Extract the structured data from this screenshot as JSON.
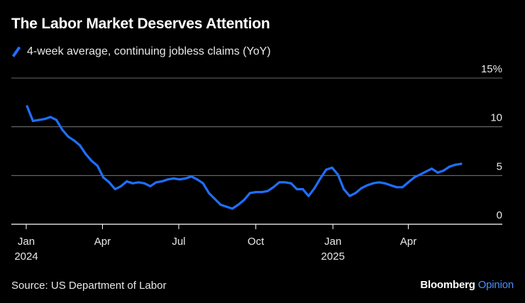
{
  "title": "The Labor Market Deserves Attention",
  "legend_label": "4-week average, continuing jobless claims (YoY)",
  "source": "Source: US Department of Labor",
  "brand": {
    "part1": "Bloomberg",
    "part2": "Opinion"
  },
  "colors": {
    "series": "#1f6fff",
    "background": "#000000",
    "grid": "#ffffff",
    "text": "#e8e8e8"
  },
  "chart_data": {
    "type": "line",
    "title": "The Labor Market Deserves Attention",
    "xlabel": "",
    "ylabel": "",
    "ylim": [
      0,
      15
    ],
    "xlim": [
      "2024-01-01",
      "2025-07-01"
    ],
    "y_ticks": [
      {
        "value": 15,
        "label": "15%"
      },
      {
        "value": 10,
        "label": "10"
      },
      {
        "value": 5,
        "label": "5"
      },
      {
        "value": 0,
        "label": "0"
      }
    ],
    "x_ticks": [
      {
        "date": "2024-01-01",
        "label": "Jan",
        "sublabel": "2024"
      },
      {
        "date": "2024-04-01",
        "label": "Apr",
        "sublabel": ""
      },
      {
        "date": "2024-07-01",
        "label": "Jul",
        "sublabel": ""
      },
      {
        "date": "2024-10-01",
        "label": "Oct",
        "sublabel": ""
      },
      {
        "date": "2025-01-01",
        "label": "Jan",
        "sublabel": "2025"
      },
      {
        "date": "2025-04-01",
        "label": "Apr",
        "sublabel": ""
      }
    ],
    "grid": true,
    "legend_position": "top-left",
    "series": [
      {
        "name": "4-week average, continuing jobless claims (YoY)",
        "x": [
          "2024-01-02",
          "2024-01-09",
          "2024-01-16",
          "2024-01-23",
          "2024-01-30",
          "2024-02-06",
          "2024-02-13",
          "2024-02-20",
          "2024-02-27",
          "2024-03-05",
          "2024-03-12",
          "2024-03-19",
          "2024-03-26",
          "2024-04-02",
          "2024-04-09",
          "2024-04-16",
          "2024-04-23",
          "2024-04-30",
          "2024-05-07",
          "2024-05-14",
          "2024-05-21",
          "2024-05-28",
          "2024-06-04",
          "2024-06-11",
          "2024-06-18",
          "2024-06-25",
          "2024-07-02",
          "2024-07-09",
          "2024-07-16",
          "2024-07-23",
          "2024-07-30",
          "2024-08-06",
          "2024-08-13",
          "2024-08-20",
          "2024-08-27",
          "2024-09-03",
          "2024-09-10",
          "2024-09-17",
          "2024-09-24",
          "2024-10-01",
          "2024-10-08",
          "2024-10-15",
          "2024-10-22",
          "2024-10-29",
          "2024-11-05",
          "2024-11-12",
          "2024-11-19",
          "2024-11-26",
          "2024-12-03",
          "2024-12-10",
          "2024-12-17",
          "2024-12-24",
          "2024-12-31",
          "2025-01-07",
          "2025-01-14",
          "2025-01-21",
          "2025-01-28",
          "2025-02-04",
          "2025-02-11",
          "2025-02-18",
          "2025-02-25",
          "2025-03-04",
          "2025-03-11",
          "2025-03-18",
          "2025-03-25",
          "2025-04-01",
          "2025-04-08",
          "2025-04-15",
          "2025-04-22",
          "2025-04-29",
          "2025-05-06",
          "2025-05-13",
          "2025-05-20",
          "2025-05-27",
          "2025-06-03"
        ],
        "values": [
          12.1,
          10.6,
          10.7,
          10.8,
          11.0,
          10.7,
          9.7,
          9.0,
          8.6,
          8.1,
          7.2,
          6.5,
          6.0,
          4.8,
          4.3,
          3.6,
          3.9,
          4.4,
          4.2,
          4.3,
          4.2,
          3.9,
          4.3,
          4.4,
          4.6,
          4.7,
          4.6,
          4.7,
          4.9,
          4.6,
          4.2,
          3.2,
          2.6,
          2.0,
          1.8,
          1.6,
          2.0,
          2.5,
          3.2,
          3.3,
          3.3,
          3.4,
          3.8,
          4.3,
          4.3,
          4.2,
          3.6,
          3.6,
          2.9,
          3.7,
          4.7,
          5.6,
          5.8,
          5.1,
          3.6,
          2.9,
          3.2,
          3.7,
          4.0,
          4.2,
          4.3,
          4.2,
          4.0,
          3.8,
          3.8,
          4.3,
          4.8,
          5.1,
          5.4,
          5.7,
          5.3,
          5.5,
          5.9,
          6.1,
          6.2
        ]
      }
    ]
  }
}
